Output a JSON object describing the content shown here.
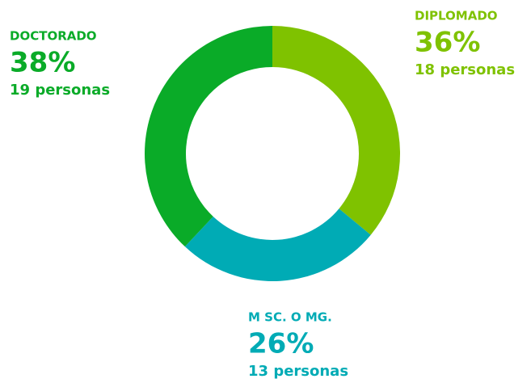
{
  "chart_data": {
    "type": "donut",
    "categories": [
      "DIPLOMADO",
      "M SC. O MG.",
      "DOCTORADO"
    ],
    "values": [
      36,
      26,
      38
    ],
    "value_labels": [
      "36%",
      "26%",
      "38%"
    ],
    "details": [
      "18 personas",
      "13 personas",
      "19 personas"
    ],
    "colors": [
      "#7fc200",
      "#00abb5",
      "#0aab28"
    ]
  }
}
